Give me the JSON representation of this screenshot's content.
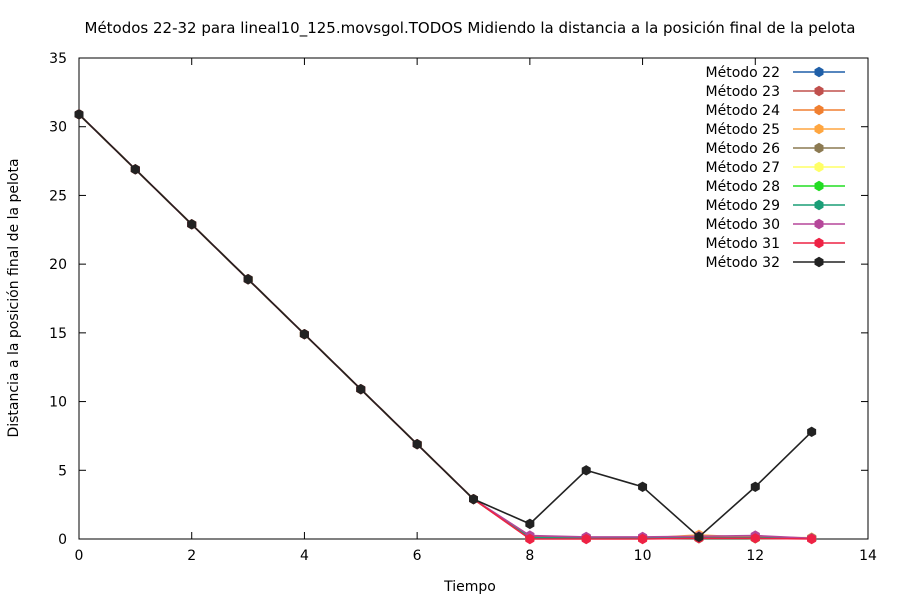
{
  "chart_data": {
    "type": "line",
    "title": "Métodos 22-32 para lineal10_125.movsgol.TODOS Midiendo la distancia a la posición final de la pelota",
    "xlabel": "Tiempo",
    "ylabel": "Distancia a la posición final de la pelota",
    "xlim": [
      0,
      14
    ],
    "ylim": [
      0,
      35
    ],
    "xticks": [
      0,
      2,
      4,
      6,
      8,
      10,
      12,
      14
    ],
    "yticks": [
      0,
      5,
      10,
      15,
      20,
      25,
      30,
      35
    ],
    "grid": false,
    "legend_position": "top-right",
    "x": [
      0,
      1,
      2,
      3,
      4,
      5,
      6,
      7,
      8,
      9,
      10,
      11,
      12,
      13
    ],
    "series": [
      {
        "name": "Método 22",
        "color": "#1f5fa8",
        "values": [
          30.9,
          26.9,
          22.9,
          18.9,
          14.9,
          10.9,
          6.9,
          2.9,
          0.1,
          0.1,
          0.1,
          0.2,
          0.1,
          0.05
        ]
      },
      {
        "name": "Método 23",
        "color": "#c0504d",
        "values": [
          30.9,
          26.9,
          22.9,
          18.9,
          14.9,
          10.9,
          6.9,
          2.9,
          0.2,
          0.1,
          0.1,
          0.1,
          0.2,
          0.05
        ]
      },
      {
        "name": "Método 24",
        "color": "#f07f30",
        "values": [
          30.9,
          26.9,
          22.9,
          18.9,
          14.9,
          10.9,
          6.9,
          2.9,
          0.1,
          0.05,
          0.1,
          0.2,
          0.1,
          0.05
        ]
      },
      {
        "name": "Método 25",
        "color": "#ffa640",
        "values": [
          30.9,
          26.9,
          22.9,
          18.9,
          14.9,
          10.9,
          6.9,
          2.9,
          0.05,
          0.05,
          0.05,
          0.3,
          0.1,
          0.1
        ]
      },
      {
        "name": "Método 26",
        "color": "#8c7a52",
        "values": [
          30.9,
          26.9,
          22.9,
          18.9,
          14.9,
          10.9,
          6.9,
          2.9,
          0.1,
          0.1,
          0.1,
          0.1,
          0.1,
          0.05
        ]
      },
      {
        "name": "Método 27",
        "color": "#ffff66",
        "values": [
          30.9,
          26.9,
          22.9,
          18.9,
          14.9,
          10.9,
          6.9,
          2.9,
          0.05,
          0.05,
          0.05,
          0.1,
          0.05,
          0.05
        ]
      },
      {
        "name": "Método 28",
        "color": "#22dd22",
        "values": [
          30.9,
          26.9,
          22.9,
          18.9,
          14.9,
          10.9,
          6.9,
          2.9,
          0.05,
          0.05,
          0.05,
          0.05,
          0.05,
          0.05
        ]
      },
      {
        "name": "Método 29",
        "color": "#1a9e77",
        "values": [
          30.9,
          26.9,
          22.9,
          18.9,
          14.9,
          10.9,
          6.9,
          2.9,
          0.1,
          0.05,
          0.1,
          0.1,
          0.1,
          0.05
        ]
      },
      {
        "name": "Método 30",
        "color": "#b5479a",
        "values": [
          30.9,
          26.9,
          22.9,
          18.9,
          14.9,
          10.9,
          6.9,
          2.9,
          0.25,
          0.15,
          0.15,
          0.2,
          0.25,
          0.05
        ]
      },
      {
        "name": "Método 31",
        "color": "#ee2244",
        "values": [
          30.9,
          26.9,
          22.9,
          18.9,
          14.9,
          10.9,
          6.9,
          2.9,
          0.0,
          0.0,
          0.0,
          0.05,
          0.05,
          0.0
        ]
      },
      {
        "name": "Método 32",
        "color": "#222222",
        "values": [
          30.9,
          26.9,
          22.9,
          18.9,
          14.9,
          10.9,
          6.9,
          2.9,
          1.1,
          5.0,
          3.8,
          0.15,
          3.8,
          7.8
        ]
      }
    ]
  }
}
